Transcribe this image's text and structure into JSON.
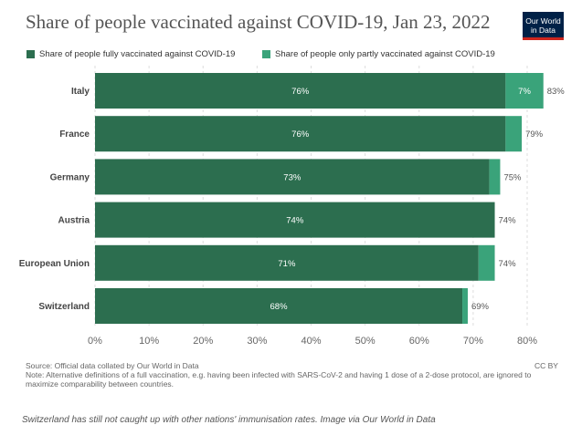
{
  "header": {
    "title": "Share of people vaccinated against COVID-19, Jan 23, 2022",
    "logo_line1": "Our World",
    "logo_line2": "in Data"
  },
  "chart_data": {
    "type": "bar",
    "orientation": "horizontal",
    "stacked": true,
    "categories": [
      "Italy",
      "France",
      "Germany",
      "Austria",
      "European Union",
      "Switzerland"
    ],
    "series": [
      {
        "name": "Share of people fully vaccinated against COVID-19",
        "color": "#2c6e4f",
        "values": [
          76,
          76,
          73,
          74,
          71,
          68
        ],
        "labels": [
          "76%",
          "76%",
          "73%",
          "74%",
          "71%",
          "68%"
        ]
      },
      {
        "name": "Share of people only partly vaccinated against COVID-19",
        "color": "#3aa37a",
        "values": [
          7,
          3,
          2,
          0,
          3,
          1
        ],
        "labels": [
          "7%",
          "",
          "",
          "",
          "",
          ""
        ]
      }
    ],
    "totals": [
      "83%",
      "79%",
      "75%",
      "74%",
      "74%",
      "69%"
    ],
    "xlim": [
      0,
      80
    ],
    "xticks": [
      "0%",
      "10%",
      "20%",
      "30%",
      "40%",
      "50%",
      "60%",
      "70%",
      "80%"
    ],
    "grid": true,
    "legend_position": "top-left"
  },
  "footer": {
    "source": "Source: Official data collated by Our World in Data",
    "note": "Note: Alternative definitions of a full vaccination, e.g. having been infected with SARS-CoV-2 and having 1 dose of a 2-dose protocol, are ignored to maximize comparability between countries.",
    "license": "CC BY"
  },
  "caption": "Switzerland has still not caught up with other nations' immunisation rates. Image via Our World in Data"
}
